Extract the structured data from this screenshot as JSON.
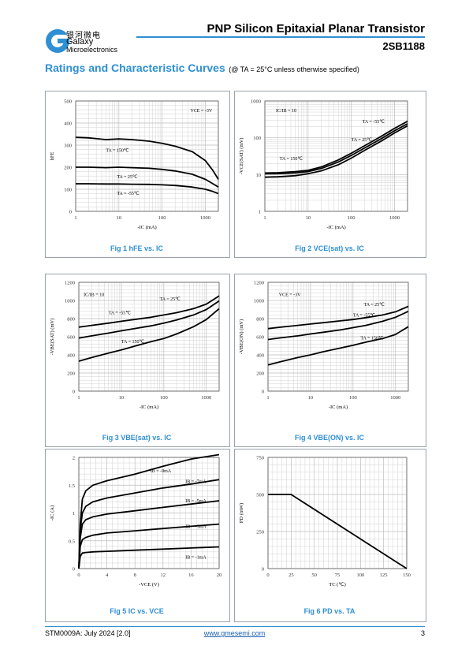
{
  "header": {
    "logo_cn": "银河微电",
    "logo_en1": "Galaxy",
    "logo_en2": "Microelectronics",
    "title": "PNP Silicon Epitaxial Planar Transistor",
    "part_number": "2SB1188"
  },
  "section": {
    "heading": "Ratings and Characteristic Curves",
    "note": "(@ TA = 25°C unless otherwise specified)"
  },
  "footer": {
    "doc": "STM0009A: July 2024 [2.0]",
    "url": "www.gmesemi.com",
    "page": "3"
  },
  "colors": {
    "accent": "#2e8fd4",
    "grid": "#d2d2d2",
    "curve": "#000000"
  },
  "chart_data": [
    {
      "id": "fig1",
      "type": "line",
      "caption": "Fig 1   hFE vs. IC",
      "xscale": "log",
      "xlim": [
        1,
        2000
      ],
      "xticks": [
        1,
        10,
        100,
        1000
      ],
      "ylim": [
        0,
        500
      ],
      "yticks": [
        0,
        100,
        200,
        300,
        400,
        500
      ],
      "xlabel": "-IC (mA)",
      "ylabel": "hFE",
      "annotations": [
        {
          "text": "VCE = -3V",
          "x": 450,
          "y": 450
        },
        {
          "text": "TA = 150℃",
          "x": 5,
          "y": 270
        },
        {
          "text": "TA = 25℃",
          "x": 9,
          "y": 150
        },
        {
          "text": "TA = -55℃",
          "x": 9,
          "y": 75
        }
      ],
      "series": [
        {
          "name": "TA = 150℃",
          "x": [
            1,
            2,
            5,
            10,
            20,
            50,
            100,
            200,
            500,
            1000,
            1500,
            2000
          ],
          "y": [
            335,
            333,
            325,
            328,
            325,
            318,
            308,
            295,
            270,
            230,
            185,
            145
          ]
        },
        {
          "name": "TA = 25℃",
          "x": [
            1,
            2,
            5,
            10,
            20,
            50,
            100,
            200,
            500,
            1000,
            1500,
            2000
          ],
          "y": [
            200,
            200,
            198,
            200,
            198,
            195,
            190,
            183,
            168,
            145,
            125,
            110
          ]
        },
        {
          "name": "TA = -55℃",
          "x": [
            1,
            2,
            5,
            10,
            20,
            50,
            100,
            200,
            500,
            1000,
            1500,
            2000
          ],
          "y": [
            125,
            125,
            124,
            124,
            123,
            122,
            120,
            117,
            110,
            100,
            90,
            80
          ]
        }
      ]
    },
    {
      "id": "fig2",
      "type": "line",
      "caption": "Fig 2   VCE(sat) vs. IC",
      "xscale": "log",
      "xlim": [
        1,
        2000
      ],
      "xticks": [
        1,
        10,
        100,
        1000
      ],
      "yscale": "log",
      "ylim": [
        1,
        1000
      ],
      "yticks": [
        1,
        10,
        100,
        1000
      ],
      "xlabel": "-IC (mA)",
      "ylabel": "-VCE(SAT) (mV)",
      "annotations": [
        {
          "text": "IC/IB = 10",
          "x": 1.8,
          "y": 500
        },
        {
          "text": "TA = -55℃",
          "x": 180,
          "y": 250
        },
        {
          "text": "TA = 25℃",
          "x": 100,
          "y": 80
        },
        {
          "text": "TA = 150℃",
          "x": 2.2,
          "y": 25
        }
      ],
      "series": [
        {
          "name": "TA = -55℃",
          "x": [
            1,
            2,
            5,
            10,
            20,
            50,
            100,
            200,
            500,
            1000,
            2000
          ],
          "y": [
            11,
            11.2,
            12,
            13,
            16,
            25,
            38,
            60,
            110,
            180,
            280
          ]
        },
        {
          "name": "TA = 25℃",
          "x": [
            1,
            2,
            5,
            10,
            20,
            50,
            100,
            200,
            500,
            1000,
            2000
          ],
          "y": [
            10.5,
            10.6,
            11,
            12,
            14.5,
            22,
            33,
            52,
            95,
            155,
            240
          ]
        },
        {
          "name": "TA = 150℃",
          "x": [
            1,
            2,
            5,
            10,
            20,
            50,
            100,
            200,
            500,
            1000,
            2000
          ],
          "y": [
            8.5,
            8.7,
            9.3,
            10.5,
            12.5,
            18.5,
            28,
            45,
            82,
            135,
            210
          ]
        }
      ]
    },
    {
      "id": "fig3",
      "type": "line",
      "caption": "Fig 3   VBE(sat) vs. IC",
      "xscale": "log",
      "xlim": [
        1,
        2000
      ],
      "xticks": [
        1,
        10,
        100,
        1000
      ],
      "ylim": [
        0,
        1200
      ],
      "yticks": [
        0,
        200,
        400,
        600,
        800,
        1000,
        1200
      ],
      "xlabel": "-IC (mA)",
      "ylabel": "-VBE(SAT) (mV)",
      "annotations": [
        {
          "text": "IC/IB = 10",
          "x": 1.3,
          "y": 1050
        },
        {
          "text": "TA = 25℃",
          "x": 80,
          "y": 1000
        },
        {
          "text": "TA = -55℃",
          "x": 5,
          "y": 850
        },
        {
          "text": "TA = 150℃",
          "x": 10,
          "y": 530
        }
      ],
      "series": [
        {
          "name": "TA = -55℃",
          "x": [
            1,
            2,
            5,
            10,
            20,
            50,
            100,
            200,
            500,
            1000,
            2000
          ],
          "y": [
            705,
            725,
            750,
            770,
            790,
            815,
            840,
            865,
            910,
            960,
            1050
          ]
        },
        {
          "name": "TA = 25℃",
          "x": [
            1,
            2,
            5,
            10,
            20,
            50,
            100,
            200,
            500,
            1000,
            2000
          ],
          "y": [
            585,
            610,
            640,
            665,
            690,
            720,
            750,
            785,
            840,
            900,
            995
          ]
        },
        {
          "name": "TA = 150℃",
          "x": [
            1,
            2,
            5,
            10,
            20,
            50,
            100,
            200,
            500,
            1000,
            2000
          ],
          "y": [
            330,
            370,
            420,
            455,
            495,
            545,
            580,
            630,
            710,
            790,
            910
          ]
        }
      ]
    },
    {
      "id": "fig4",
      "type": "line",
      "caption": "Fig 4   VBE(ON) vs. IC",
      "xscale": "log",
      "xlim": [
        1,
        2000
      ],
      "xticks": [
        1,
        10,
        100,
        1000
      ],
      "ylim": [
        0,
        1200
      ],
      "yticks": [
        0,
        200,
        400,
        600,
        800,
        1000,
        1200
      ],
      "xlabel": "-IC (mA)",
      "ylabel": "-VBE(ON) (mV)",
      "annotations": [
        {
          "text": "VCE = -3V",
          "x": 1.8,
          "y": 1050
        },
        {
          "text": "TA = 25℃",
          "x": 180,
          "y": 940
        },
        {
          "text": "TA = -55℃",
          "x": 100,
          "y": 820
        },
        {
          "text": "TA = 150℃",
          "x": 150,
          "y": 570
        }
      ],
      "series": [
        {
          "name": "TA = -55℃",
          "x": [
            1,
            2,
            5,
            10,
            20,
            50,
            100,
            200,
            500,
            1000,
            2000
          ],
          "y": [
            690,
            705,
            725,
            740,
            755,
            775,
            790,
            810,
            840,
            875,
            935
          ]
        },
        {
          "name": "TA = 25℃",
          "x": [
            1,
            2,
            5,
            10,
            20,
            50,
            100,
            200,
            500,
            1000,
            2000
          ],
          "y": [
            570,
            588,
            610,
            630,
            650,
            675,
            700,
            725,
            770,
            815,
            880
          ]
        },
        {
          "name": "TA = 150℃",
          "x": [
            1,
            2,
            5,
            10,
            20,
            50,
            100,
            200,
            500,
            1000,
            2000
          ],
          "y": [
            290,
            325,
            370,
            400,
            435,
            475,
            505,
            540,
            580,
            625,
            710
          ]
        }
      ]
    },
    {
      "id": "fig5",
      "type": "line",
      "caption": "Fig 5   IC vs. VCE",
      "xlim": [
        0,
        20
      ],
      "xticks": [
        0,
        4,
        8,
        12,
        16,
        20
      ],
      "ylim": [
        0,
        2
      ],
      "yticks": [
        0,
        0.5,
        1,
        1.5,
        2
      ],
      "xlabel": "-VCE (V)",
      "ylabel": "-IC (A)",
      "annotations": [
        {
          "text": "IB = -9mA",
          "x": 10.2,
          "y": 1.73
        },
        {
          "text": "IB = -7mA",
          "x": 15.2,
          "y": 1.54
        },
        {
          "text": "IB = -5mA",
          "x": 15.2,
          "y": 1.19
        },
        {
          "text": "IB = -3mA",
          "x": 15.2,
          "y": 0.73
        },
        {
          "text": "IB = -1mA",
          "x": 15.2,
          "y": 0.18
        }
      ],
      "series": [
        {
          "name": "IB = -9mA",
          "x": [
            0,
            0.2,
            0.5,
            1,
            2,
            4,
            8,
            12,
            16,
            20
          ],
          "y": [
            0,
            0.8,
            1.25,
            1.4,
            1.5,
            1.58,
            1.7,
            1.84,
            1.97,
            2.05
          ]
        },
        {
          "name": "IB = -7mA",
          "x": [
            0,
            0.2,
            0.5,
            1,
            2,
            4,
            8,
            12,
            16,
            20
          ],
          "y": [
            0,
            0.7,
            1.0,
            1.12,
            1.2,
            1.27,
            1.36,
            1.45,
            1.52,
            1.6
          ]
        },
        {
          "name": "IB = -5mA",
          "x": [
            0,
            0.2,
            0.5,
            1,
            2,
            4,
            8,
            12,
            16,
            20
          ],
          "y": [
            0,
            0.55,
            0.8,
            0.88,
            0.93,
            0.98,
            1.04,
            1.1,
            1.16,
            1.22
          ]
        },
        {
          "name": "IB = -3mA",
          "x": [
            0,
            0.2,
            0.5,
            1,
            2,
            4,
            8,
            12,
            16,
            20
          ],
          "y": [
            0,
            0.4,
            0.52,
            0.56,
            0.6,
            0.64,
            0.68,
            0.72,
            0.76,
            0.8
          ]
        },
        {
          "name": "IB = -1mA",
          "x": [
            0,
            0.2,
            0.5,
            1,
            2,
            4,
            8,
            12,
            16,
            20
          ],
          "y": [
            0,
            0.22,
            0.28,
            0.29,
            0.3,
            0.31,
            0.33,
            0.35,
            0.37,
            0.39
          ]
        }
      ]
    },
    {
      "id": "fig6",
      "type": "line",
      "caption": "Fig 6   PD vs. TA",
      "xlim": [
        0,
        150
      ],
      "xticks": [
        0,
        25,
        50,
        75,
        100,
        125,
        150
      ],
      "ylim": [
        0,
        750
      ],
      "yticks": [
        0,
        250,
        500,
        750
      ],
      "xlabel": "TC (℃)",
      "ylabel": "PD (mW)",
      "annotations": [],
      "series": [
        {
          "name": "PD",
          "x": [
            0,
            25,
            150
          ],
          "y": [
            500,
            500,
            0
          ]
        }
      ]
    }
  ]
}
